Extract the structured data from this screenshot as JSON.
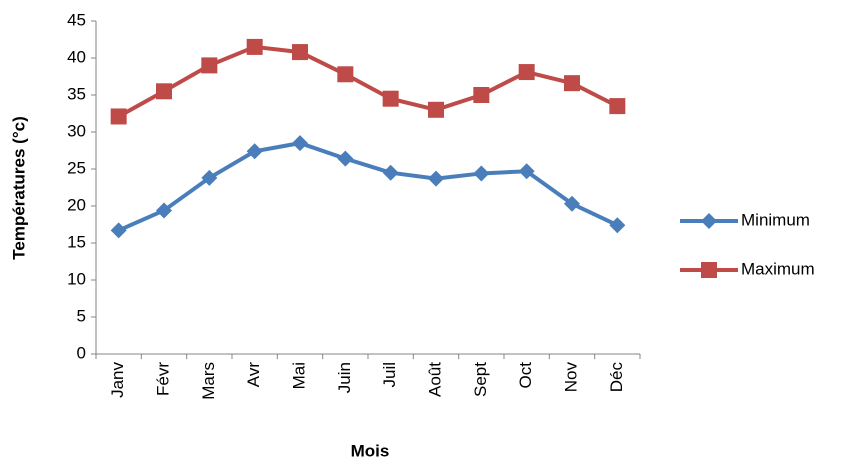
{
  "chart_data": {
    "type": "line",
    "x_label": "Mois",
    "y_label": "Températures (°c)",
    "categories": [
      "Janv",
      "Févr",
      "Mars",
      "Avr",
      "Mai",
      "Juin",
      "Juil",
      "Août",
      "Sept",
      "Oct",
      "Nov",
      "Déc"
    ],
    "series": [
      {
        "name": "Minimum",
        "color": "#4a7ebb",
        "marker": "diamond",
        "values": [
          16.7,
          19.4,
          23.8,
          27.4,
          28.5,
          26.4,
          24.5,
          23.7,
          24.4,
          24.7,
          20.3,
          17.4
        ]
      },
      {
        "name": "Maximum",
        "color": "#be4b48",
        "marker": "square",
        "values": [
          32.1,
          35.5,
          39.0,
          41.5,
          40.8,
          37.8,
          34.5,
          33.0,
          35.0,
          38.1,
          36.6,
          33.5
        ]
      }
    ],
    "ylim": [
      0,
      45
    ],
    "yticks": [
      0,
      5,
      10,
      15,
      20,
      25,
      30,
      35,
      40,
      45
    ],
    "grid": false,
    "legend": "right"
  }
}
